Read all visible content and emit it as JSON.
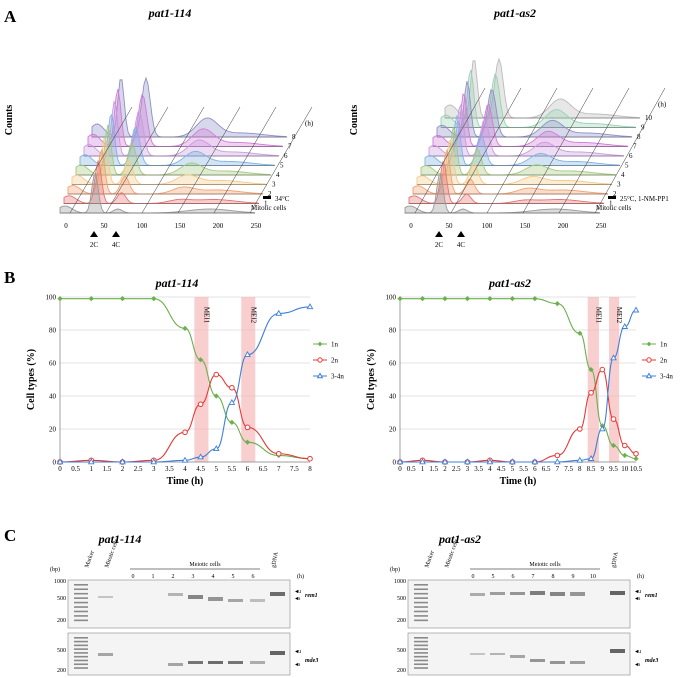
{
  "panel_labels": {
    "a": "A",
    "b": "B",
    "c": "C"
  },
  "panel_a": {
    "left": {
      "title": "pat1-114",
      "ylabel": "Counts",
      "xticks": [
        "0",
        "50",
        "100",
        "150",
        "200",
        "250"
      ],
      "markers": [
        "2C",
        "4C"
      ],
      "hour_unit": "(h)",
      "hours": [
        "1",
        "2",
        "3",
        "4",
        "5",
        "6",
        "7",
        "8"
      ],
      "condition": "34°C",
      "baseline_label": "Mitotic cells"
    },
    "right": {
      "title": "pat1-as2",
      "ylabel": "Counts",
      "xticks": [
        "0",
        "50",
        "100",
        "150",
        "200",
        "250"
      ],
      "markers": [
        "2C",
        "4C"
      ],
      "hour_unit": "(h)",
      "hours": [
        "1",
        "2",
        "3",
        "4",
        "5",
        "6",
        "7",
        "8",
        "9",
        "10"
      ],
      "condition": "25°C, 1-NM-PP1",
      "baseline_label": "Mitotic cells"
    },
    "colors": [
      "#e57373",
      "#f0a070",
      "#f4c98a",
      "#a4c97a",
      "#7fb3e0",
      "#c89be0",
      "#d17bd6",
      "#8f8fc8",
      "#9ad0b4",
      "#bbbbbb"
    ]
  },
  "chart_data": [
    {
      "type": "line",
      "title": "pat1-114",
      "xlabel": "Time (h)",
      "ylabel": "Cell types (%)",
      "x": [
        0,
        0.5,
        1,
        1.5,
        2,
        2.5,
        3,
        3.5,
        4,
        4.5,
        5,
        5.5,
        6,
        6.5,
        7,
        7.5,
        8
      ],
      "xticks": [
        "0",
        "0.5",
        "1",
        "1.5",
        "2",
        "2.5",
        "3",
        "3.5",
        "4",
        "4.5",
        "5",
        "5.5",
        "6",
        "6.5",
        "7",
        "7.5",
        "8"
      ],
      "yticks": [
        "0",
        "20",
        "40",
        "60",
        "80",
        "100"
      ],
      "xlim": [
        0,
        8
      ],
      "ylim": [
        0,
        100
      ],
      "series": [
        {
          "name": "1n",
          "color": "#6ab04c",
          "marker": "diamond",
          "x": [
            0,
            1,
            2,
            3,
            4,
            4.5,
            5,
            5.5,
            6,
            7,
            8
          ],
          "values": [
            99,
            99,
            99,
            99,
            81,
            62,
            40,
            24,
            12,
            4,
            2
          ]
        },
        {
          "name": "2n",
          "color": "#e53935",
          "marker": "circle",
          "x": [
            0,
            1,
            2,
            3,
            4,
            4.5,
            5,
            5.5,
            6,
            7,
            8
          ],
          "values": [
            0,
            1,
            0,
            1,
            18,
            35,
            53,
            45,
            21,
            5,
            2
          ]
        },
        {
          "name": "3-4n",
          "color": "#3f7fd9",
          "marker": "triangle",
          "x": [
            0,
            1,
            2,
            3,
            4,
            4.5,
            5,
            5.5,
            6,
            7,
            8
          ],
          "values": [
            0,
            0,
            0,
            0,
            1,
            3,
            8,
            36,
            65,
            90,
            94
          ]
        }
      ],
      "bands": [
        {
          "label": "MEI1",
          "from": 4.3,
          "to": 4.75
        },
        {
          "label": "MEI2",
          "from": 5.8,
          "to": 6.25
        }
      ]
    },
    {
      "type": "line",
      "title": "pat1-as2",
      "xlabel": "Time (h)",
      "ylabel": "Cell types (%)",
      "x": [
        0,
        0.5,
        1,
        1.5,
        2,
        2.5,
        3,
        3.5,
        4,
        4.5,
        5,
        5.5,
        6,
        6.5,
        7,
        7.5,
        8,
        8.5,
        9,
        9.5,
        10,
        10.5
      ],
      "xticks": [
        "0",
        "0.5",
        "1",
        "1.5",
        "2",
        "2.5",
        "3",
        "3.5",
        "4",
        "4.5",
        "5",
        "5.5",
        "6",
        "6.5",
        "7",
        "7.5",
        "8",
        "8.5",
        "9",
        "9.5",
        "10",
        "10.5"
      ],
      "yticks": [
        "0",
        "20",
        "40",
        "60",
        "80",
        "100"
      ],
      "xlim": [
        0,
        10.5
      ],
      "ylim": [
        0,
        100
      ],
      "series": [
        {
          "name": "1n",
          "color": "#6ab04c",
          "marker": "diamond",
          "x": [
            0,
            1,
            2,
            3,
            4,
            5,
            6,
            7,
            8,
            8.5,
            9,
            9.5,
            10,
            10.5
          ],
          "values": [
            99,
            99,
            99,
            99,
            99,
            99,
            99,
            96,
            78,
            56,
            22,
            10,
            4,
            2
          ]
        },
        {
          "name": "2n",
          "color": "#e53935",
          "marker": "circle",
          "x": [
            0,
            1,
            2,
            3,
            4,
            5,
            6,
            7,
            8,
            8.5,
            9,
            9.5,
            10,
            10.5
          ],
          "values": [
            0,
            1,
            0,
            0,
            1,
            0,
            0,
            4,
            20,
            42,
            56,
            26,
            10,
            5
          ]
        },
        {
          "name": "3-4n",
          "color": "#3f7fd9",
          "marker": "triangle",
          "x": [
            0,
            1,
            2,
            3,
            4,
            5,
            6,
            7,
            8,
            8.5,
            9,
            9.5,
            10,
            10.5
          ],
          "values": [
            0,
            0,
            0,
            0,
            0,
            0,
            0,
            0,
            1,
            2,
            20,
            63,
            82,
            92
          ]
        }
      ],
      "bands": [
        {
          "label": "MEI1",
          "from": 8.35,
          "to": 8.85
        },
        {
          "label": "MEI2",
          "from": 9.3,
          "to": 9.75
        }
      ]
    }
  ],
  "panel_c": {
    "left": {
      "title": "pat1-114",
      "bp_unit": "(bp)",
      "bp_ticks": [
        "1000",
        "500",
        "200"
      ],
      "bp_ticks_bottom": [
        "500",
        "200"
      ],
      "lane_headers": [
        "Marker",
        "Mitotic cells"
      ],
      "group_label": "Meiotic cells",
      "lanes": [
        "0",
        "1",
        "2",
        "3",
        "4",
        "5",
        "6"
      ],
      "gdna": "gDNA",
      "hour_unit": "(h)",
      "genes": [
        "rem1",
        "mde3"
      ],
      "band_marks": [
        "u",
        "s"
      ]
    },
    "right": {
      "title": "pat1-as2",
      "bp_unit": "(bp)",
      "bp_ticks": [
        "1000",
        "500",
        "200"
      ],
      "bp_ticks_bottom": [
        "500",
        "200"
      ],
      "lane_headers": [
        "Marker",
        "Mitotic cells"
      ],
      "group_label": "Meiotic cells",
      "lanes": [
        "0",
        "5",
        "6",
        "7",
        "8",
        "9",
        "10"
      ],
      "gdna": "gDNA",
      "hour_unit": "(h)",
      "genes": [
        "rem1",
        "mde3"
      ],
      "band_marks": [
        "u",
        "s"
      ]
    }
  }
}
